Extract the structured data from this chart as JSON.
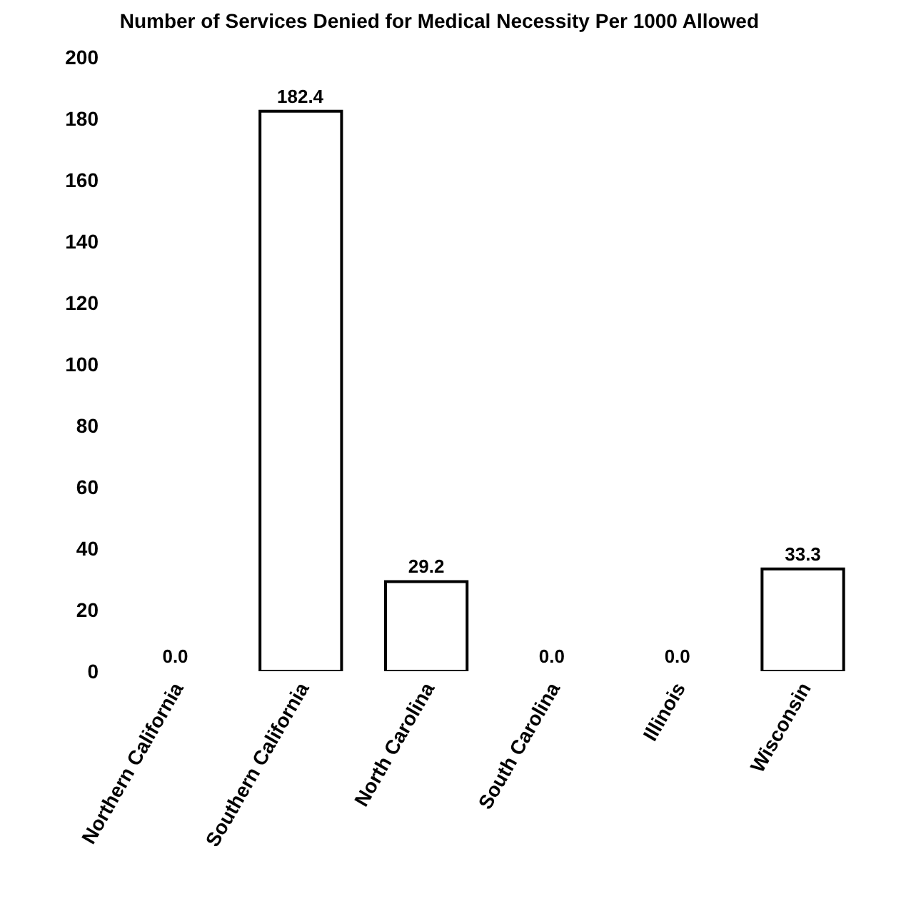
{
  "chart_data": {
    "type": "bar",
    "title": "Number of Services Denied for Medical Necessity Per 1000 Allowed",
    "categories": [
      "Northern California",
      "Southern California",
      "North Carolina",
      "South Carolina",
      "Illinois",
      "Wisconsin"
    ],
    "values": [
      0.0,
      182.4,
      29.2,
      0.0,
      0.0,
      33.3
    ],
    "color": "#ffffff",
    "ylim": [
      0,
      200
    ],
    "yticks": [
      0,
      20,
      40,
      60,
      80,
      100,
      120,
      140,
      160,
      180,
      200
    ],
    "grid": false,
    "value_labels": [
      "0.0",
      "182.4",
      "29.2",
      "0.0",
      "0.0",
      "33.3"
    ]
  }
}
